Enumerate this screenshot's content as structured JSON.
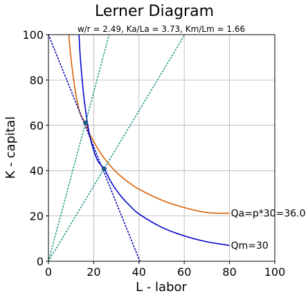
{
  "chart_data": {
    "type": "line",
    "title": "Lerner Diagram",
    "subtitle": "w/r = 2.49,   Ka/La = 3.73,   Km/Lm = 1.66",
    "xlabel": "L - labor",
    "ylabel": "K - capital",
    "xlim": [
      0,
      100
    ],
    "ylim": [
      0,
      100
    ],
    "xticks": [
      0,
      20,
      40,
      60,
      80,
      100
    ],
    "yticks": [
      0,
      20,
      40,
      60,
      80,
      100
    ],
    "grid": true,
    "series": [
      {
        "name": "Qa=p*30=36.0",
        "kind": "isoquant",
        "color": "#d95f02",
        "x": [
          9,
          10,
          12,
          14,
          16.4,
          18,
          20,
          24,
          28,
          32,
          36,
          40,
          50,
          60,
          70,
          80
        ],
        "y": [
          100,
          89.2,
          74.3,
          65.2,
          60.9,
          56.5,
          52.8,
          46.3,
          41.4,
          37.5,
          34.4,
          31.8,
          27.0,
          23.7,
          21.5,
          21.2
        ]
      },
      {
        "name": "Qm=30",
        "kind": "isoquant",
        "color": "#0000cc",
        "x": [
          13.5,
          14,
          15,
          16,
          18,
          20,
          22,
          24.6,
          28,
          32,
          36,
          40,
          50,
          60,
          70,
          80
        ],
        "y": [
          100,
          91.0,
          79.0,
          69.6,
          56.5,
          48.9,
          44.0,
          40.8,
          34.4,
          28.8,
          24.5,
          20.9,
          15.0,
          11.2,
          8.6,
          7.0
        ]
      },
      {
        "name": "",
        "kind": "isocost",
        "style": "dotted",
        "color": "#0000aa",
        "x": [
          0,
          40.4
        ],
        "y": [
          100,
          0
        ]
      },
      {
        "name": "",
        "kind": "ray",
        "style": "dotted",
        "color": "#2a9d8f",
        "x": [
          0,
          26.8
        ],
        "y": [
          0,
          100
        ]
      },
      {
        "name": "",
        "kind": "ray",
        "style": "dotted",
        "color": "#2a9d8f",
        "x": [
          0,
          60.2
        ],
        "y": [
          0,
          100
        ]
      }
    ],
    "points": [
      {
        "x": 16.4,
        "y": 61.1,
        "color": "#1f5f8b"
      },
      {
        "x": 24.6,
        "y": 40.8,
        "color": "#1f5f8b"
      }
    ],
    "curve_labels": [
      {
        "text": "Qa=p*30=36.0",
        "x": 80,
        "y": 21.2
      },
      {
        "text": "Qm=30",
        "x": 80,
        "y": 7.0
      }
    ]
  }
}
